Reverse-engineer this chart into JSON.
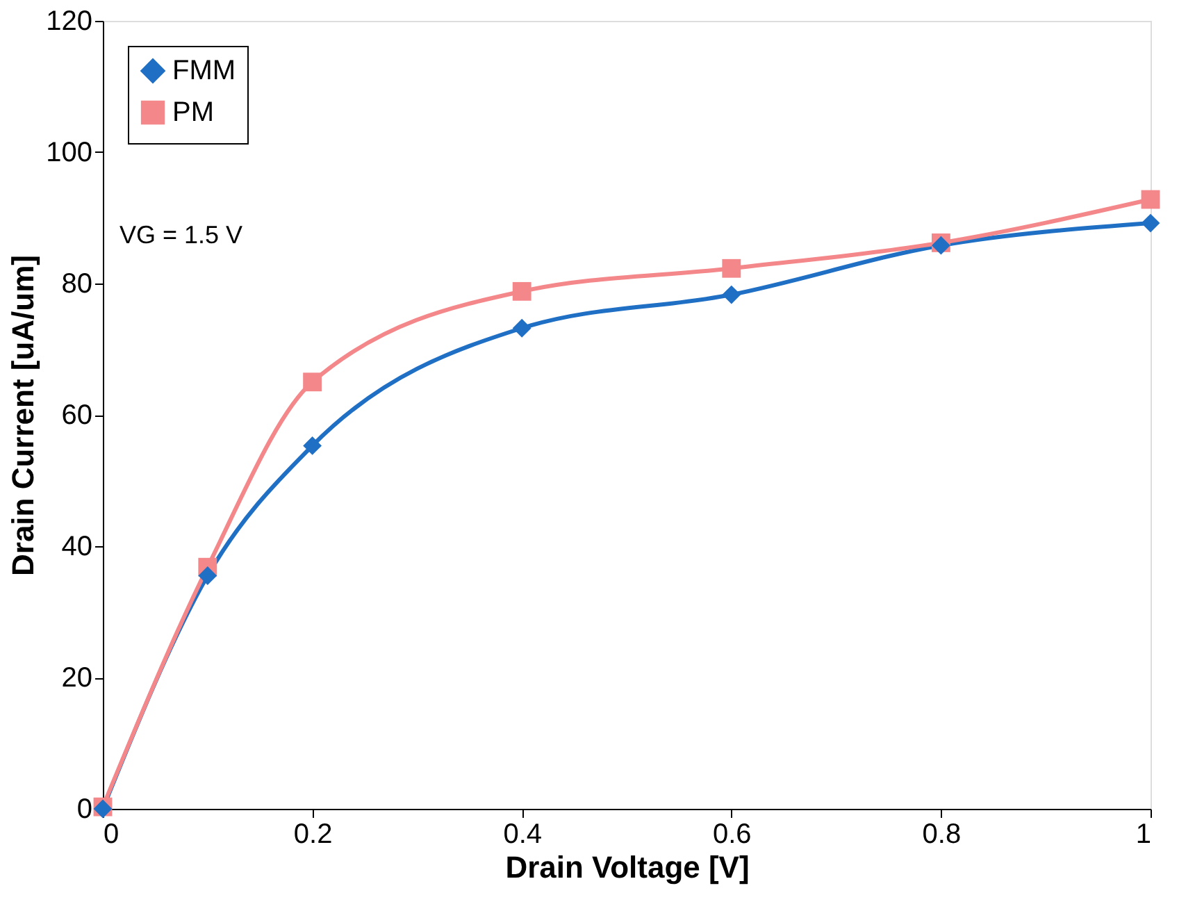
{
  "chart_data": {
    "type": "line",
    "xlabel": "Drain Voltage [V]",
    "ylabel": "Drain Current [uA/um]",
    "x": [
      0,
      0.1,
      0.2,
      0.4,
      0.6,
      0.8,
      1
    ],
    "series": [
      {
        "name": "FMM",
        "color": "#1f6fc5",
        "marker": "diamond",
        "values": [
          0,
          35.5,
          55.3,
          73.2,
          78.3,
          85.8,
          89.2
        ]
      },
      {
        "name": "PM",
        "color": "#f4878a",
        "marker": "square",
        "values": [
          0.3,
          36.8,
          65,
          78.8,
          82.3,
          86.2,
          92.8
        ]
      }
    ],
    "xlim": [
      0,
      1
    ],
    "xticks": [
      0,
      0.2,
      0.4,
      0.6,
      0.8,
      1
    ],
    "ylim": [
      0,
      120
    ],
    "yticks": [
      0,
      20,
      40,
      60,
      80,
      100,
      120
    ],
    "grid": false,
    "legend": "top left",
    "line_style": "solid",
    "annotations": [
      "VG = 1.5 V"
    ]
  }
}
